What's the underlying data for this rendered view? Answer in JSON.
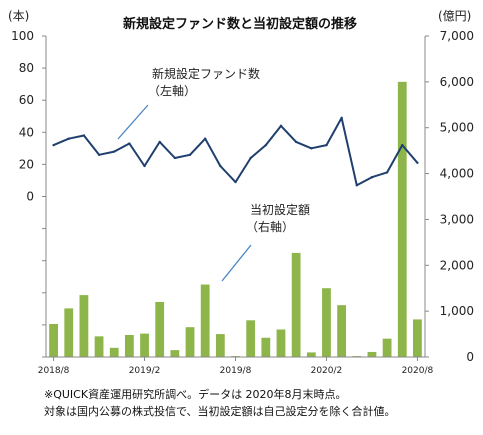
{
  "chart_data": {
    "type": "bar+line",
    "title": "新規設定ファンド数と当初設定額の推移",
    "left_axis": {
      "unit": "(本)",
      "ticks": [
        0,
        20,
        40,
        60,
        80,
        100
      ],
      "ylim": [
        -100,
        100
      ]
    },
    "right_axis": {
      "unit": "(億円)",
      "ticks": [
        "0",
        "1,000",
        "2,000",
        "3,000",
        "4,000",
        "5,000",
        "6,000",
        "7,000"
      ],
      "ylim": [
        0,
        7000
      ]
    },
    "x_tick_labels": [
      "2018/8",
      "2019/2",
      "2019/8",
      "2020/2",
      "2020/8"
    ],
    "months": [
      "2018/8",
      "2018/9",
      "2018/10",
      "2018/11",
      "2018/12",
      "2019/1",
      "2019/2",
      "2019/3",
      "2019/4",
      "2019/5",
      "2019/6",
      "2019/7",
      "2019/8",
      "2019/9",
      "2019/10",
      "2019/11",
      "2019/12",
      "2020/1",
      "2020/2",
      "2020/3",
      "2020/4",
      "2020/5",
      "2020/6",
      "2020/7",
      "2020/8"
    ],
    "series": [
      {
        "name": "新規設定ファンド数",
        "axis": "left",
        "type": "line",
        "color": "#1f3f6e",
        "values": [
          32,
          36,
          38,
          26,
          28,
          33,
          19,
          34,
          24,
          26,
          36,
          19,
          9,
          24,
          32,
          44,
          34,
          30,
          32,
          49,
          7,
          12,
          15,
          32,
          21
        ]
      },
      {
        "name": "当初設定額",
        "axis": "right",
        "type": "bar",
        "color": "#8db54a",
        "values": [
          720,
          1060,
          1350,
          450,
          200,
          480,
          510,
          1200,
          150,
          650,
          1580,
          500,
          20,
          800,
          420,
          600,
          2270,
          100,
          1500,
          1130,
          20,
          110,
          400,
          6000,
          820
        ]
      }
    ],
    "annotations": [
      {
        "text": [
          "新規設定ファンド数",
          "（左軸）"
        ]
      },
      {
        "text": [
          "当初設定額",
          "（右軸）"
        ]
      }
    ]
  },
  "notes": [
    "※QUICK資産運用研究所調べ。データは 2020年8月末時点。",
    "対象は国内公募の株式投信で、当初設定額は自己設定分を除く合計値。"
  ]
}
